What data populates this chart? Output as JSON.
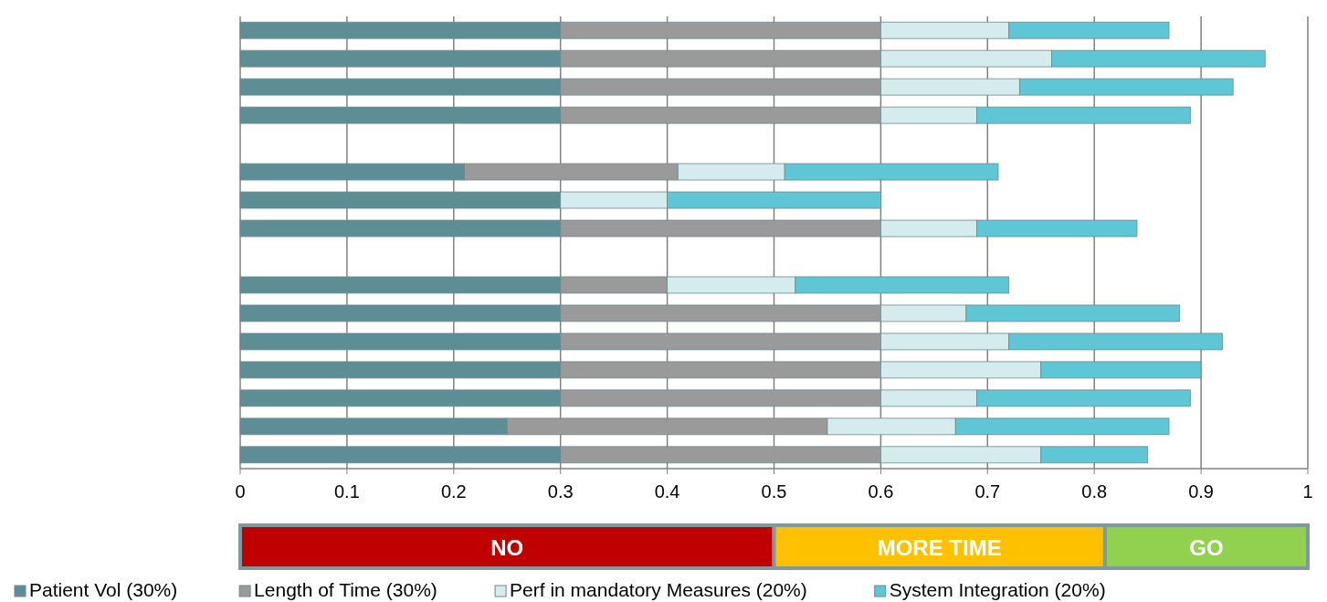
{
  "chart_data": [
    {
      "type": "bar",
      "orientation": "horizontal",
      "stacked": true,
      "categories": [
        null,
        null,
        null,
        null,
        null,
        null,
        null,
        null,
        null,
        null,
        null,
        null,
        null,
        null,
        null,
        null
      ],
      "series": [
        {
          "name": "Patient Vol (30%)",
          "color": "#5e8e95",
          "values": [
            0.3,
            0.3,
            0.3,
            0.3,
            null,
            0.21,
            0.3,
            0.3,
            null,
            0.3,
            0.3,
            0.3,
            0.3,
            0.3,
            0.25,
            0.3
          ]
        },
        {
          "name": "Length of Time (30%)",
          "color": "#9a9a9a",
          "values": [
            0.3,
            0.3,
            0.3,
            0.3,
            null,
            0.2,
            0,
            0.3,
            null,
            0.1,
            0.3,
            0.3,
            0.3,
            0.3,
            0.3,
            0.3
          ]
        },
        {
          "name": "Perf in mandatory Measures (20%)",
          "color": "#d4ecee",
          "values": [
            0.12,
            0.16,
            0.13,
            0.09,
            null,
            0.1,
            0.1,
            0.09,
            null,
            0.12,
            0.08,
            0.12,
            0.15,
            0.09,
            0.12,
            0.15
          ]
        },
        {
          "name": "System Integration (20%)",
          "color": "#5ec6d4",
          "values": [
            0.15,
            0.2,
            0.2,
            0.2,
            null,
            0.2,
            0.2,
            0.15,
            null,
            0.2,
            0.2,
            0.2,
            0.15,
            0.2,
            0.2,
            0.1
          ]
        }
      ],
      "xlim": [
        0,
        1
      ],
      "xticks": [
        0,
        0.1,
        0.2,
        0.3,
        0.4,
        0.5,
        0.6,
        0.7,
        0.8,
        0.9,
        1
      ],
      "grid": "x",
      "legend": "bottom",
      "tick_labels": "x"
    },
    {
      "type": "bar",
      "orientation": "horizontal",
      "stacked": true,
      "categories": [
        null
      ],
      "series": [
        {
          "name": "NO",
          "color": "#c00000",
          "values": [
            0.5
          ]
        },
        {
          "name": "MORE TIME",
          "color": "#ffc000",
          "values": [
            0.31
          ]
        },
        {
          "name": "GO",
          "color": "#92d050",
          "values": [
            0.19
          ]
        }
      ],
      "xlim": [
        0,
        1
      ],
      "tick_labels": false
    }
  ]
}
